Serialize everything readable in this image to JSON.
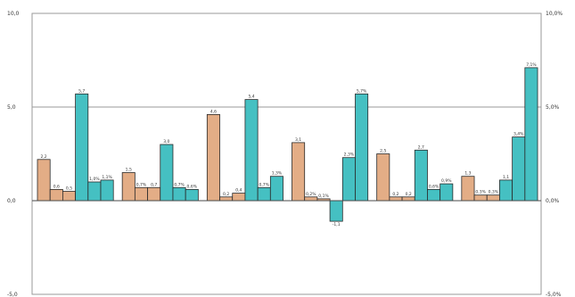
{
  "chart_data": {
    "type": "bar",
    "title": "",
    "xlabel": "",
    "ylabel": "",
    "ylim": [
      -5,
      10
    ],
    "y_ticks": [
      "-5,0",
      "0,0",
      "5,0",
      "10,0"
    ],
    "y2lim": [
      -5,
      10
    ],
    "y2_ticks": [
      "-5,0%",
      "0,0%",
      "5,0%",
      "10,0%"
    ],
    "grid": "horizontal",
    "legend": "none",
    "groups": [
      {
        "bars": [
          {
            "value": 2.2,
            "label": "2,2",
            "color": "#e3ad86"
          },
          {
            "value": 0.6,
            "label": "0,6",
            "color": "#e3ad86"
          },
          {
            "value": 0.5,
            "label": "0,5",
            "color": "#e3ad86"
          },
          {
            "value": 5.7,
            "label": "5,7",
            "color": "#45c0c2"
          },
          {
            "value": 1.0,
            "label": "1,0%",
            "color": "#45c0c2"
          },
          {
            "value": 1.1,
            "label": "1,1%",
            "color": "#45c0c2"
          }
        ]
      },
      {
        "bars": [
          {
            "value": 1.5,
            "label": "1,5",
            "color": "#e3ad86"
          },
          {
            "value": 0.7,
            "label": "0,7%",
            "color": "#e3ad86"
          },
          {
            "value": 0.7,
            "label": "0,7",
            "color": "#e3ad86"
          },
          {
            "value": 3.0,
            "label": "3,0",
            "color": "#45c0c2"
          },
          {
            "value": 0.7,
            "label": "0,7%",
            "color": "#45c0c2"
          },
          {
            "value": 0.6,
            "label": "0,6%",
            "color": "#45c0c2"
          }
        ]
      },
      {
        "bars": [
          {
            "value": 4.6,
            "label": "4,6",
            "color": "#e3ad86"
          },
          {
            "value": 0.2,
            "label": "0,2",
            "color": "#e3ad86"
          },
          {
            "value": 0.4,
            "label": "0,4",
            "color": "#e3ad86"
          },
          {
            "value": 5.4,
            "label": "5,4",
            "color": "#45c0c2"
          },
          {
            "value": 0.7,
            "label": "0,7%",
            "color": "#45c0c2"
          },
          {
            "value": 1.3,
            "label": "1,3%",
            "color": "#45c0c2"
          }
        ]
      },
      {
        "bars": [
          {
            "value": 3.1,
            "label": "3,1",
            "color": "#e3ad86"
          },
          {
            "value": 0.2,
            "label": "0,2%",
            "color": "#e3ad86"
          },
          {
            "value": 0.1,
            "label": "0,1%",
            "color": "#e3ad86"
          },
          {
            "value": -1.1,
            "label": "-1,1",
            "color": "#45c0c2"
          },
          {
            "value": 2.3,
            "label": "2,3%",
            "color": "#45c0c2"
          },
          {
            "value": 5.7,
            "label": "5,7%",
            "color": "#45c0c2"
          }
        ]
      },
      {
        "bars": [
          {
            "value": 2.5,
            "label": "2,5",
            "color": "#e3ad86"
          },
          {
            "value": 0.2,
            "label": "0,2",
            "color": "#e3ad86"
          },
          {
            "value": 0.2,
            "label": "0,2",
            "color": "#e3ad86"
          },
          {
            "value": 2.7,
            "label": "2,7",
            "color": "#45c0c2"
          },
          {
            "value": 0.6,
            "label": "0,6%",
            "color": "#45c0c2"
          },
          {
            "value": 0.9,
            "label": "0,9%",
            "color": "#45c0c2"
          }
        ]
      },
      {
        "bars": [
          {
            "value": 1.3,
            "label": "1,3",
            "color": "#e3ad86"
          },
          {
            "value": 0.3,
            "label": "0,3%",
            "color": "#e3ad86"
          },
          {
            "value": 0.3,
            "label": "0,3%",
            "color": "#e3ad86"
          },
          {
            "value": 1.1,
            "label": "1,1",
            "color": "#45c0c2"
          },
          {
            "value": 3.4,
            "label": "3,4%",
            "color": "#45c0c2"
          },
          {
            "value": 7.1,
            "label": "7,1%",
            "color": "#45c0c2"
          }
        ]
      }
    ]
  }
}
